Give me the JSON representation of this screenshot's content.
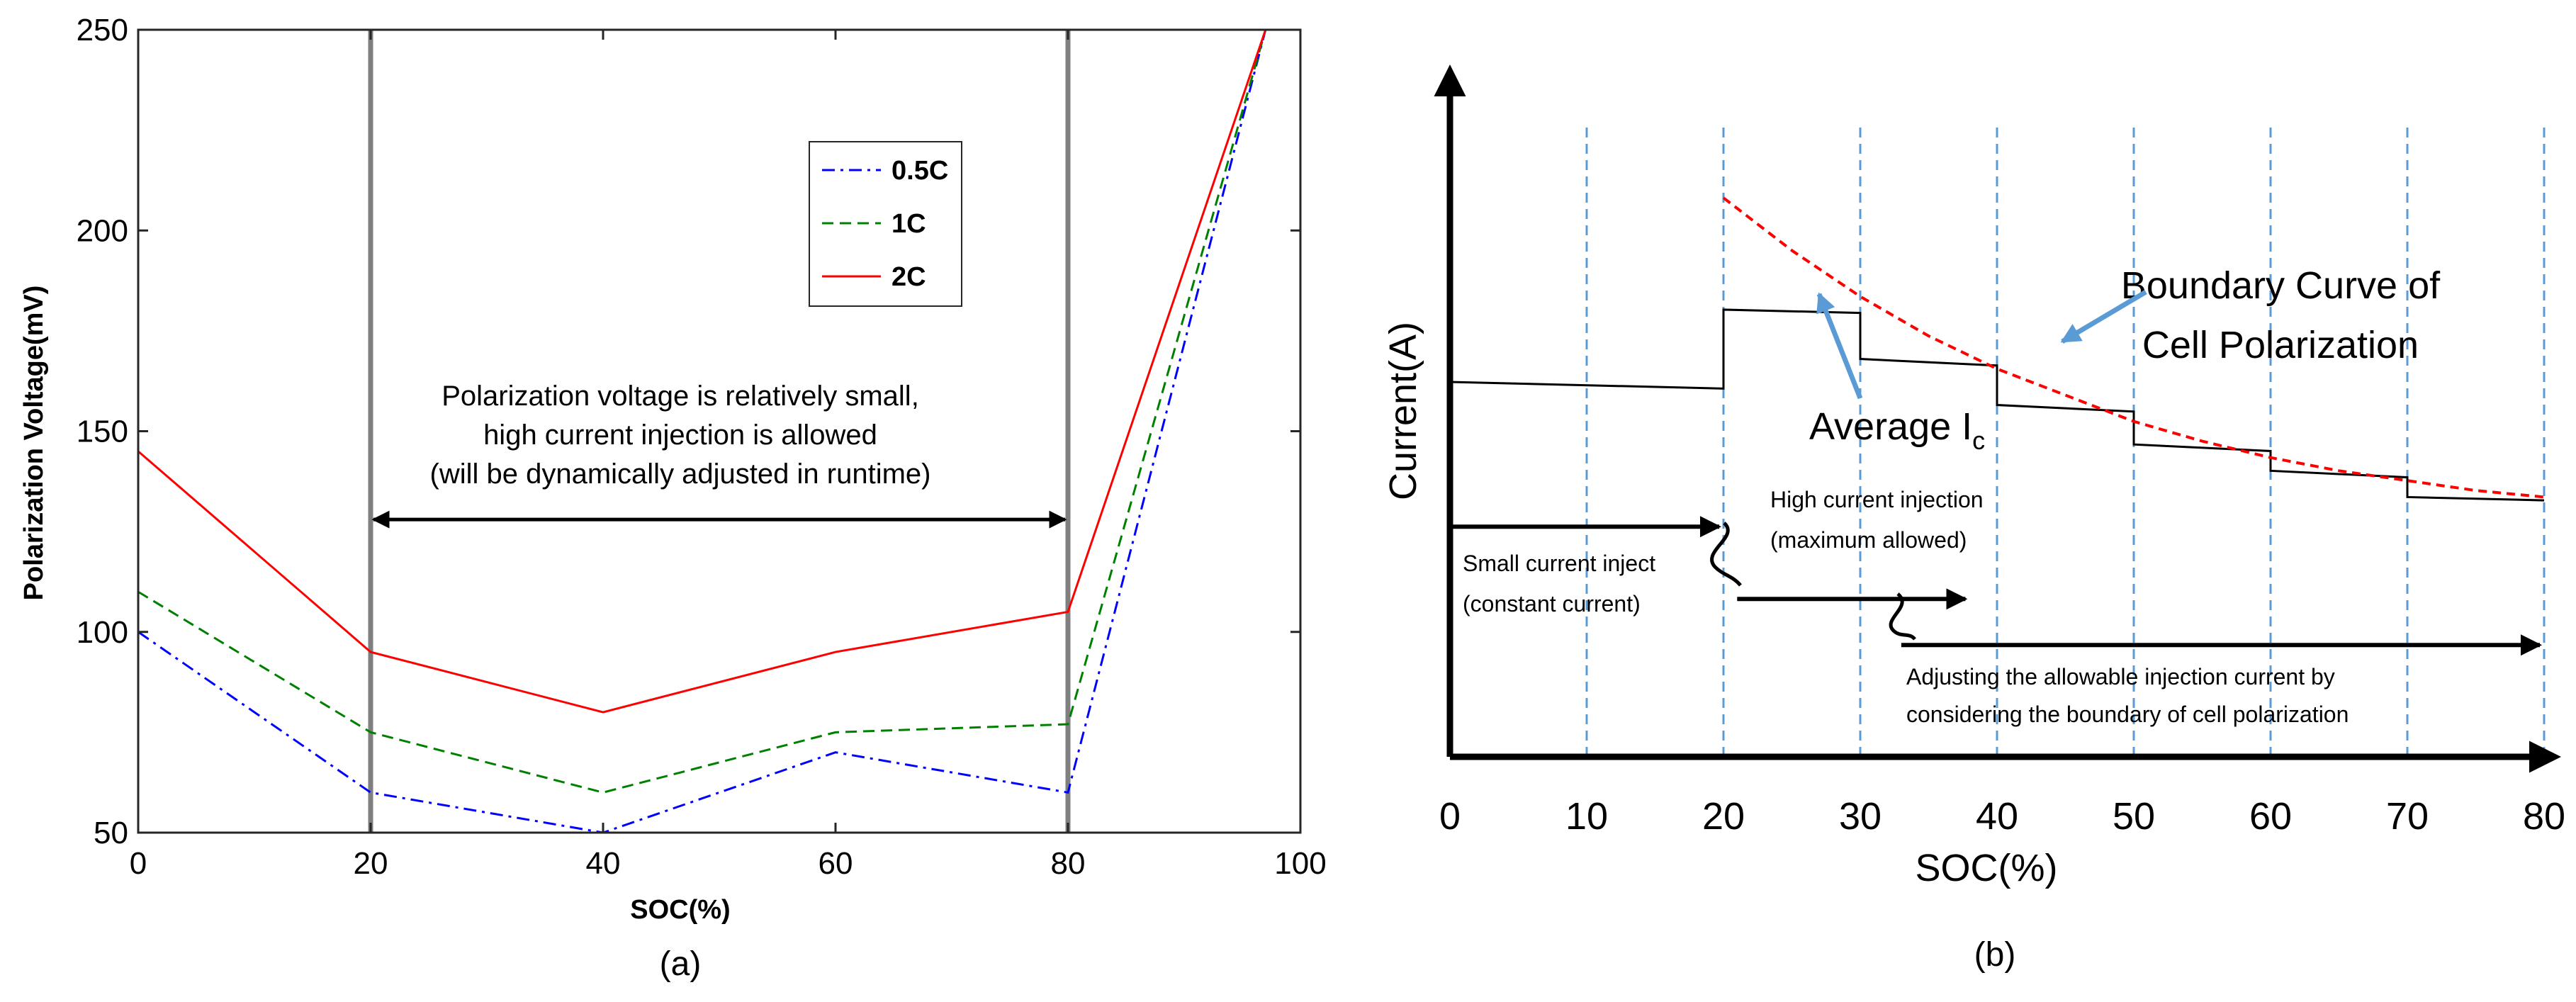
{
  "chart_data": [
    {
      "panel": "a",
      "type": "line",
      "caption": "(a)",
      "xlabel": "SOC(%)",
      "ylabel": "Polarization Voltage(mV)",
      "xlim": [
        0,
        100
      ],
      "ylim": [
        50,
        250
      ],
      "xticks": [
        0,
        20,
        40,
        60,
        80,
        100
      ],
      "yticks": [
        50,
        100,
        150,
        200,
        250
      ],
      "grid": false,
      "legend_position": "top-right",
      "series": [
        {
          "name": "0.5C",
          "color": "#0000ff",
          "dash": "dashdot",
          "x": [
            0,
            20,
            40,
            60,
            80,
            97
          ],
          "y": [
            100,
            60,
            50,
            70,
            60,
            250
          ]
        },
        {
          "name": "1C",
          "color": "#008000",
          "dash": "dashed",
          "x": [
            0,
            20,
            40,
            60,
            80,
            97
          ],
          "y": [
            110,
            75,
            60,
            75,
            77,
            250
          ]
        },
        {
          "name": "2C",
          "color": "#ff0000",
          "dash": "solid",
          "x": [
            0,
            20,
            40,
            60,
            80,
            97
          ],
          "y": [
            145,
            95,
            80,
            95,
            105,
            250
          ]
        }
      ],
      "vertical_lines": [
        20,
        80
      ],
      "annotation": {
        "lines": [
          "Polarization voltage is relatively small,",
          "high current injection is allowed",
          "(will be dynamically adjusted in runtime)"
        ],
        "arrow_from_x": 20,
        "arrow_to_x": 80,
        "arrow_y": 128
      }
    },
    {
      "panel": "b",
      "type": "line",
      "caption": "(b)",
      "xlabel": "SOC(%)",
      "ylabel": "Current(A)",
      "xlim": [
        0,
        80
      ],
      "xticks": [
        0,
        10,
        20,
        30,
        40,
        50,
        60,
        70,
        80
      ],
      "dashed_gridlines_x": [
        10,
        20,
        30,
        40,
        50,
        60,
        70,
        80
      ],
      "series": [
        {
          "name": "Average Ic",
          "color": "#000000",
          "dash": "solid",
          "x": [
            0,
            20,
            20,
            30,
            30,
            40,
            40,
            50,
            50,
            60,
            60,
            70,
            70,
            80
          ],
          "y": [
            0.57,
            0.56,
            0.68,
            0.675,
            0.605,
            0.595,
            0.535,
            0.525,
            0.475,
            0.465,
            0.435,
            0.425,
            0.395,
            0.39
          ]
        },
        {
          "name": "Boundary Curve of Cell Polarization",
          "color": "#ff0000",
          "dash": "dashed",
          "x": [
            20,
            25,
            30,
            35,
            40,
            45,
            50,
            55,
            60,
            65,
            70,
            75,
            80
          ],
          "y": [
            0.85,
            0.77,
            0.7,
            0.64,
            0.59,
            0.55,
            0.51,
            0.48,
            0.455,
            0.435,
            0.42,
            0.405,
            0.395
          ]
        }
      ],
      "labels": {
        "boundary_line1": "Boundary Curve of",
        "boundary_line2": "Cell Polarization",
        "average_main": "Average I",
        "average_sub": "c",
        "small_line1": "Small current inject",
        "small_line2": "(constant current)",
        "high_line1": "High current injection",
        "high_line2": "(maximum allowed)",
        "adjust_line1": "Adjusting the allowable injection current by",
        "adjust_line2": "considering the boundary of cell polarization"
      },
      "process_arrows": [
        {
          "from_x": 0,
          "to_x": 20,
          "y": 0.35
        },
        {
          "from_x": 21,
          "to_x": 38,
          "y": 0.24
        },
        {
          "from_x": 33,
          "to_x": 80,
          "y": 0.17
        }
      ]
    }
  ]
}
